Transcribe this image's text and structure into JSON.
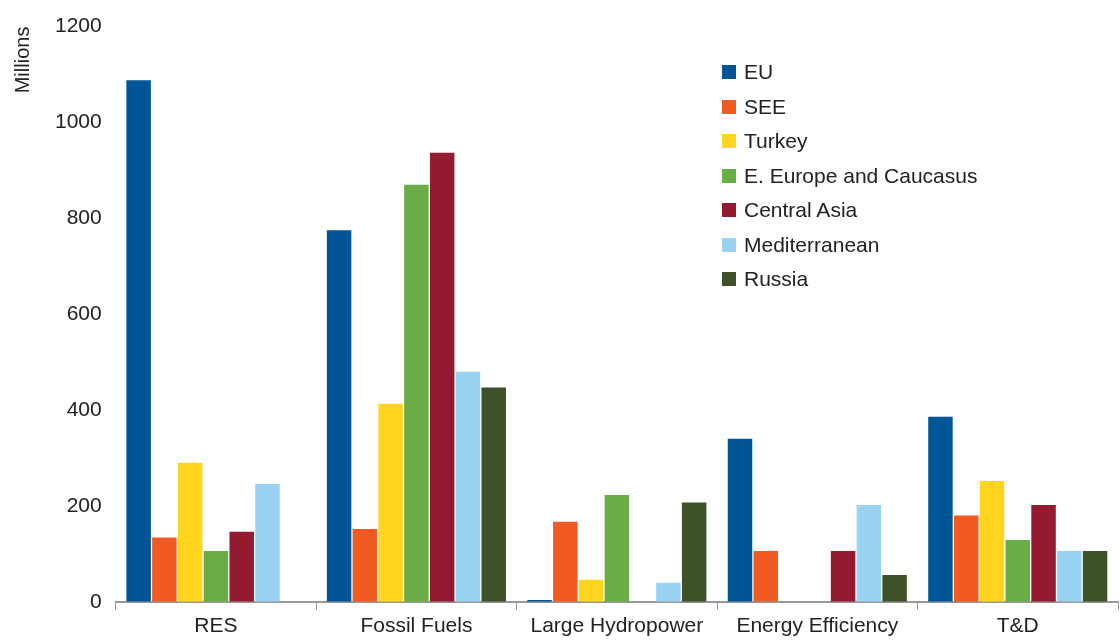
{
  "chart_data": {
    "type": "bar",
    "ylabel": "Millions",
    "categories": [
      "RES",
      "Fossil Fuels",
      "Large Hydropower",
      "Energy Efficiency",
      "T&D"
    ],
    "series": [
      {
        "name": "EU",
        "color": "#005596",
        "values": [
          1088,
          775,
          4,
          340,
          386
        ]
      },
      {
        "name": "SEE",
        "color": "#f15a22",
        "values": [
          134,
          152,
          167,
          106,
          180
        ]
      },
      {
        "name": "Turkey",
        "color": "#ffd51f",
        "values": [
          290,
          413,
          46,
          null,
          252
        ]
      },
      {
        "name": "E. Europe and Caucasus",
        "color": "#6aac46",
        "values": [
          106,
          870,
          223,
          null,
          129
        ]
      },
      {
        "name": "Central Asia",
        "color": "#921a31",
        "values": [
          146,
          937,
          null,
          106,
          202
        ]
      },
      {
        "name": "Mediterranean",
        "color": "#99d3f2",
        "values": [
          246,
          480,
          40,
          202,
          106
        ]
      },
      {
        "name": "Russia",
        "color": "#3f5128",
        "values": [
          null,
          447,
          207,
          56,
          106
        ]
      }
    ],
    "ylim": [
      0,
      1200
    ],
    "yticks": [
      0,
      200,
      400,
      600,
      800,
      1000,
      1200
    ],
    "grid": false,
    "legend": "top right"
  }
}
